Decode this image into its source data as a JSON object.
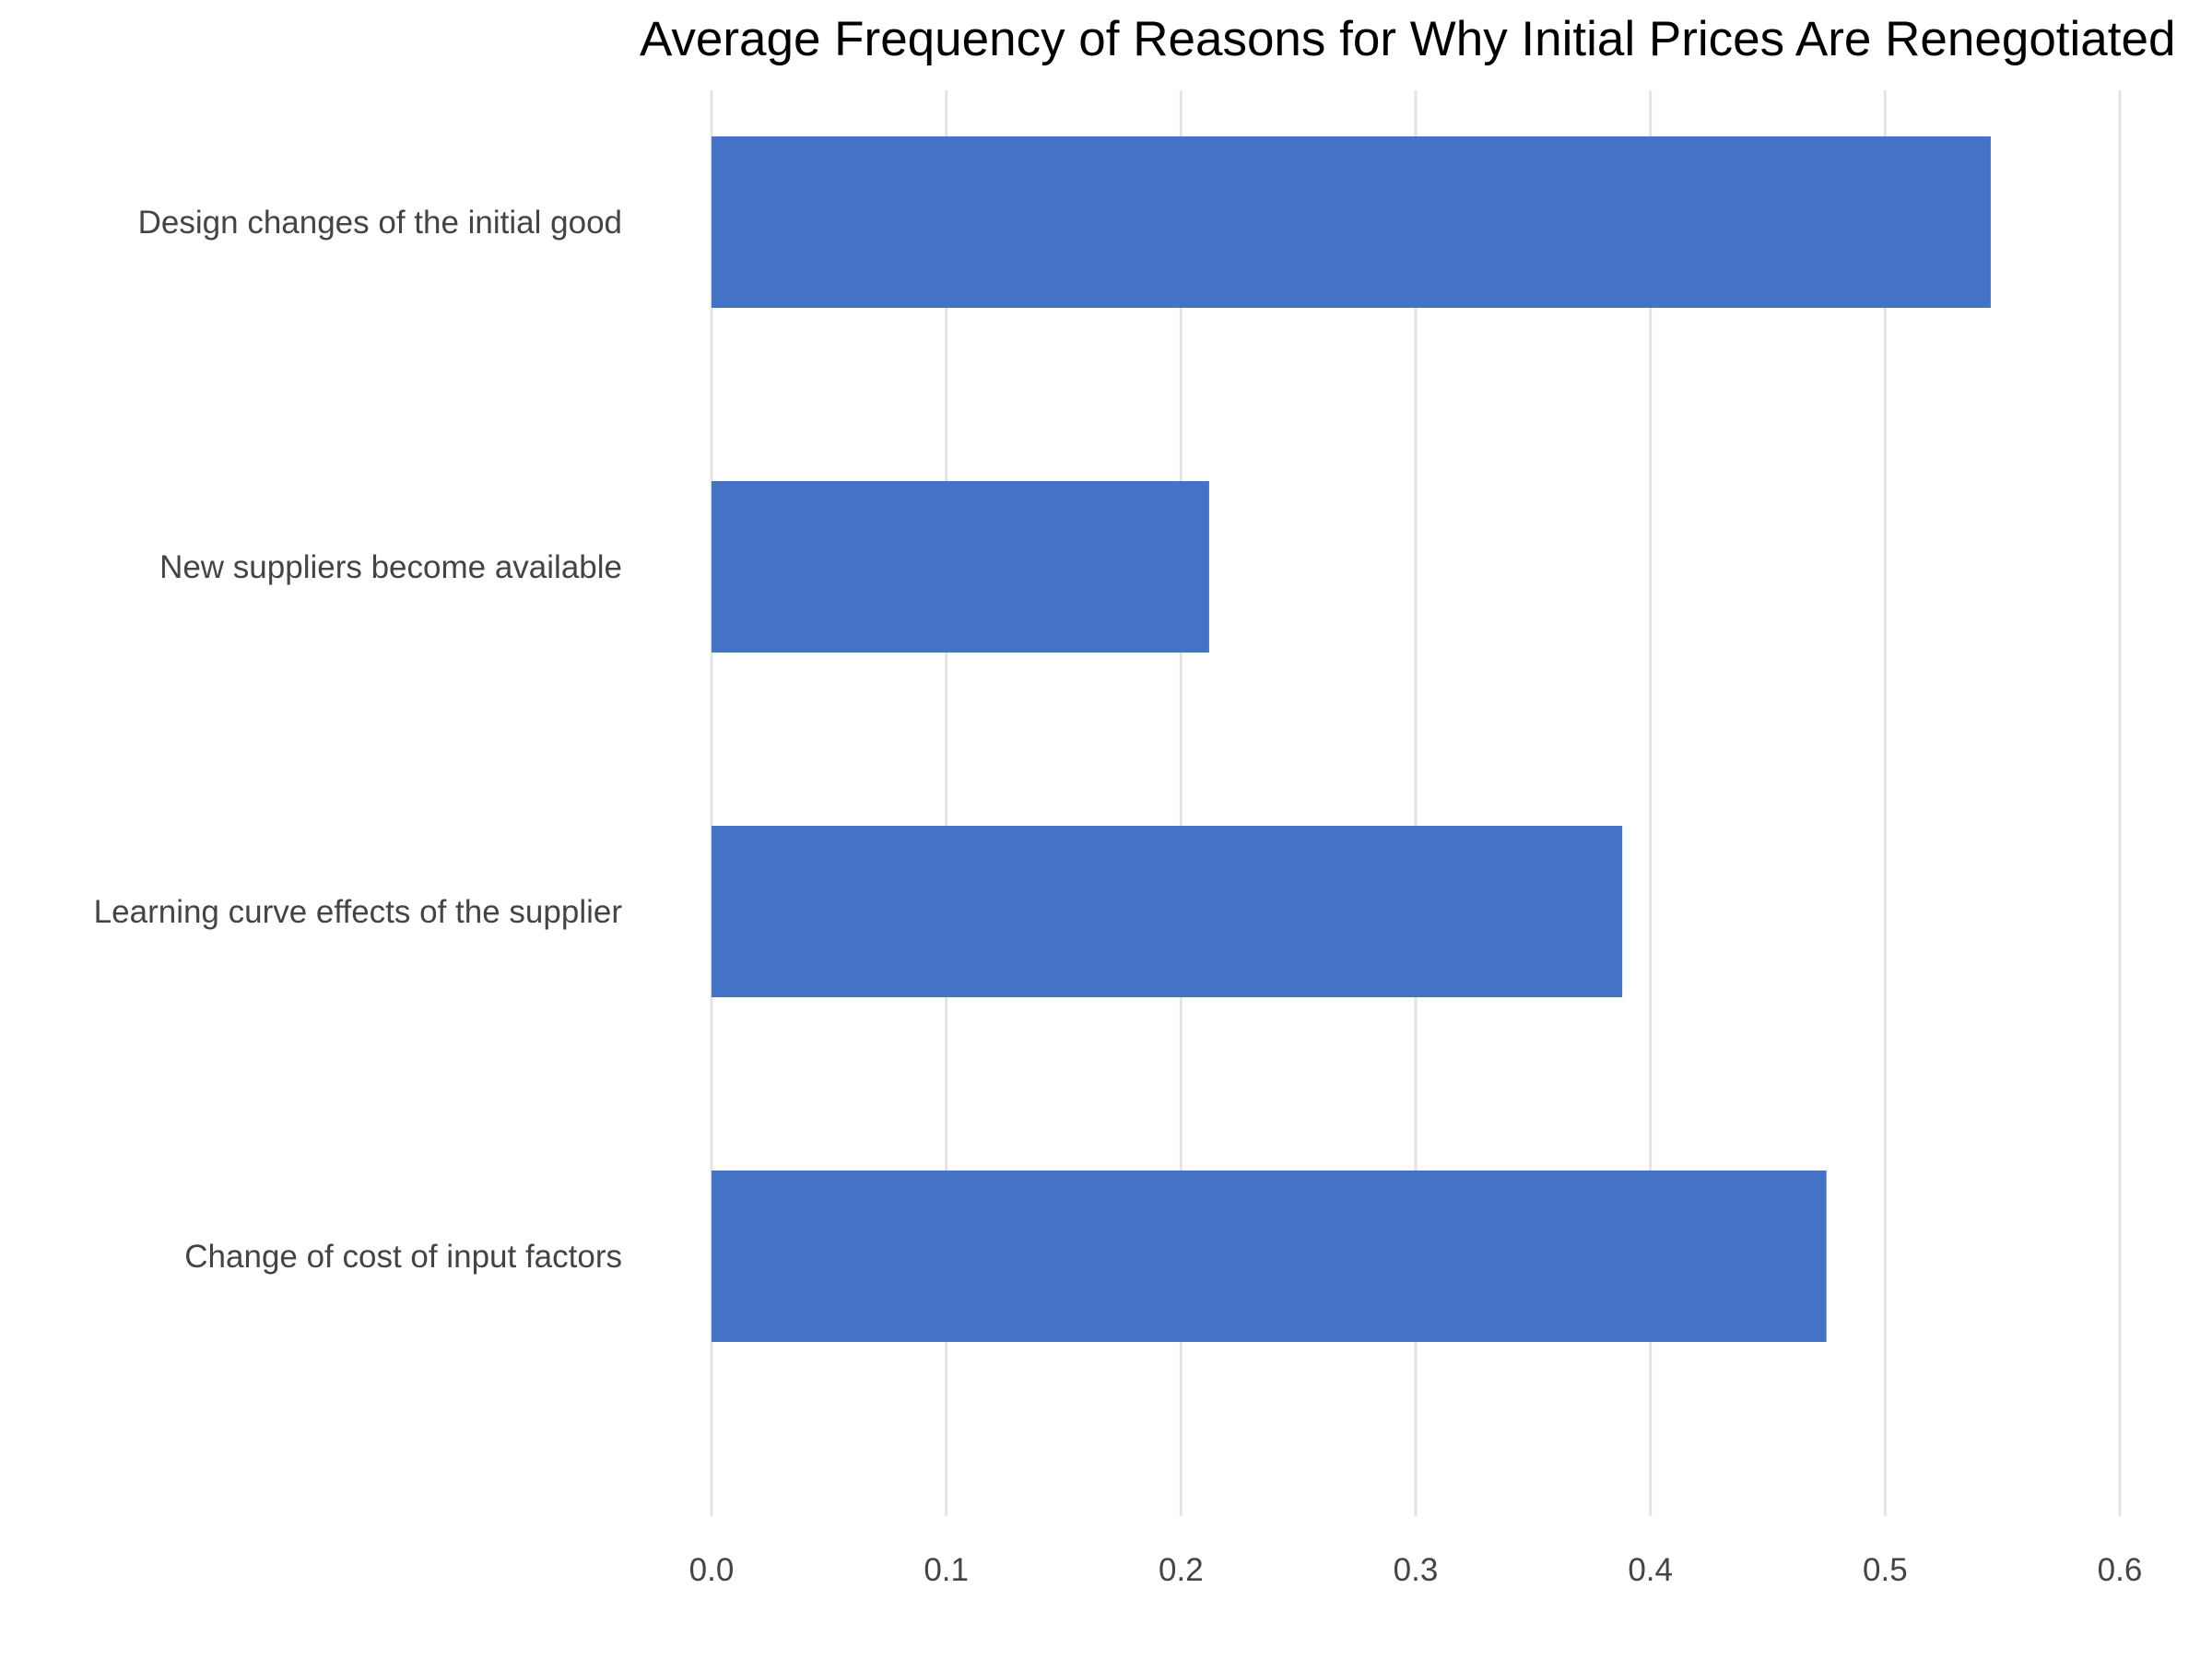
{
  "chart_data": {
    "type": "bar",
    "orientation": "horizontal",
    "title": "Average Frequency of Reasons for Why Initial Prices Are Renegotiated",
    "xlabel": "",
    "ylabel": "",
    "categories": [
      "Design changes of the initial good",
      "New suppliers become available",
      "Learning curve effects of the supplier",
      "Change of cost of input factors"
    ],
    "values": [
      0.545,
      0.212,
      0.388,
      0.475
    ],
    "xlim": [
      0,
      0.6
    ],
    "xticks": [
      "0.0",
      "0.1",
      "0.2",
      "0.3",
      "0.4",
      "0.5",
      "0.6"
    ],
    "xtick_values": [
      0,
      0.1,
      0.2,
      0.3,
      0.4,
      0.5,
      0.6
    ],
    "grid": "vertical major gridlines",
    "legend": "none",
    "bar_color": "#4472C4",
    "gridline_color": "#e3e3e3"
  }
}
